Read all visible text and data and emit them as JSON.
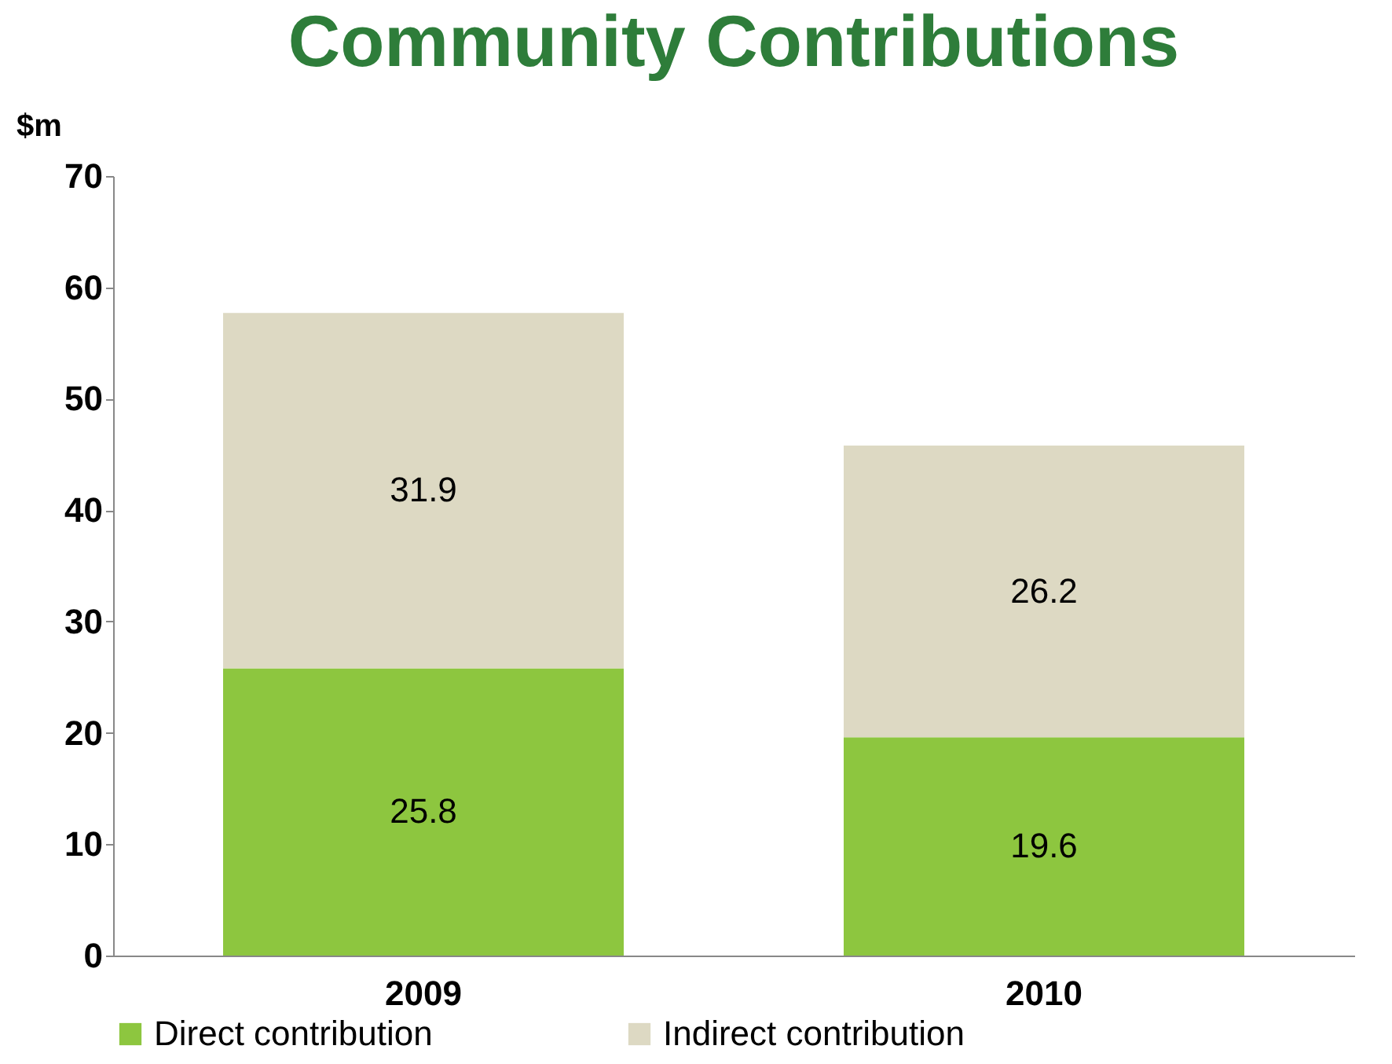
{
  "chart_data": {
    "type": "bar",
    "title": "Community Contributions",
    "ylabel": "$m",
    "stacked": true,
    "categories": [
      "2009",
      "2010"
    ],
    "series": [
      {
        "name": "Direct contribution",
        "color": "#8dc63f",
        "values": [
          25.8,
          19.6
        ]
      },
      {
        "name": "Indirect contribution",
        "color": "#ddd9c3",
        "values": [
          31.9,
          26.2
        ]
      }
    ],
    "ylim": [
      0,
      70
    ],
    "yticks": [
      0,
      10,
      20,
      30,
      40,
      50,
      60,
      70
    ],
    "data_labels": true,
    "grid": false,
    "legend": "bottom"
  }
}
